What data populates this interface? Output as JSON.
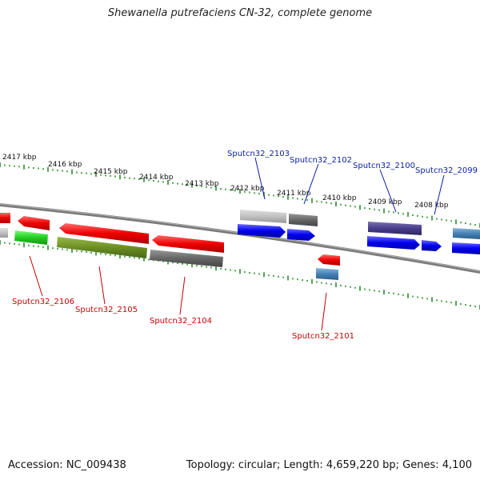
{
  "title": "Shewanella putrefaciens CN-32, complete genome",
  "footer": {
    "accession": "Accession: NC_009438",
    "topology": "Topology: circular; Length: 4,659,220 bp; Genes: 4,100"
  },
  "colors": {
    "backbone": "#888888",
    "tick": "#2e8b2e",
    "forward_label": "#0a1ea8",
    "reverse_label": "#c80000"
  },
  "scale_labels": [
    "2417 kbp",
    "2416 kbp",
    "2415 kbp",
    "2414 kbp",
    "2413 kbp",
    "2412 kbp",
    "2411 kbp",
    "2410 kbp",
    "2409 kbp",
    "2408 kbp"
  ],
  "gene_labels": {
    "forward": [
      "Sputcn32_2103",
      "Sputcn32_2102",
      "Sputcn32_2100",
      "Sputcn32_2099"
    ],
    "reverse": [
      "Sputcn32_2106",
      "Sputcn32_2105",
      "Sputcn32_2104",
      "Sputcn32_2101"
    ]
  }
}
